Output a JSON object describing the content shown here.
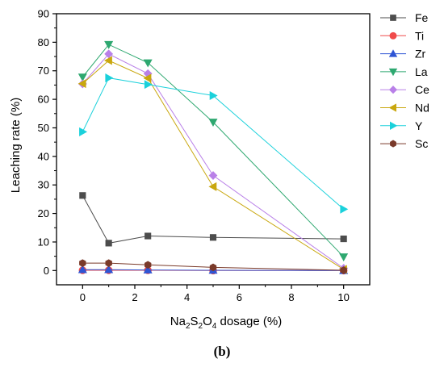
{
  "caption": "(b)",
  "chart_data": {
    "type": "line",
    "title": "",
    "xlabel_parts": [
      {
        "t": "Na",
        "sub": false
      },
      {
        "t": "2",
        "sub": true
      },
      {
        "t": "S",
        "sub": false
      },
      {
        "t": "2",
        "sub": true
      },
      {
        "t": "O",
        "sub": false
      },
      {
        "t": "4",
        "sub": true
      },
      {
        "t": " dosage (%)",
        "sub": false
      }
    ],
    "ylabel": "Leaching rate (%)",
    "xlim": [
      -1,
      11
    ],
    "ylim": [
      -5,
      90
    ],
    "xticks": [
      0,
      2,
      4,
      6,
      8,
      10
    ],
    "yticks": [
      0,
      10,
      20,
      30,
      40,
      50,
      60,
      70,
      80,
      90
    ],
    "grid": false,
    "legend_position": "top-right outside",
    "x": [
      0,
      1,
      2.5,
      5,
      10
    ],
    "series": [
      {
        "name": "Fe",
        "color": "#4d4d4d",
        "marker": "square",
        "values": [
          26.3,
          9.6,
          12.1,
          11.6,
          11.1
        ]
      },
      {
        "name": "Ti",
        "color": "#f04b4b",
        "marker": "circle",
        "values": [
          0.1,
          0.1,
          0.1,
          0.0,
          0.0
        ]
      },
      {
        "name": "Zr",
        "color": "#2f55d4",
        "marker": "triangle-up",
        "values": [
          0.3,
          0.3,
          0.2,
          0.1,
          0.0
        ]
      },
      {
        "name": "La",
        "color": "#2ea870",
        "marker": "triangle-down",
        "values": [
          67.8,
          79.2,
          72.8,
          52.0,
          4.8
        ]
      },
      {
        "name": "Ce",
        "color": "#b980e8",
        "marker": "diamond",
        "values": [
          65.4,
          75.9,
          69.0,
          33.3,
          0.8
        ]
      },
      {
        "name": "Nd",
        "color": "#c9a70e",
        "marker": "triangle-left",
        "values": [
          65.5,
          73.6,
          67.4,
          29.4,
          0.4
        ]
      },
      {
        "name": "Y",
        "color": "#1bd1db",
        "marker": "triangle-right",
        "values": [
          48.6,
          67.5,
          65.2,
          61.3,
          21.5
        ]
      },
      {
        "name": "Sc",
        "color": "#7a3a2a",
        "marker": "hexagon",
        "values": [
          2.6,
          2.6,
          2.0,
          1.1,
          0.1
        ]
      }
    ]
  }
}
